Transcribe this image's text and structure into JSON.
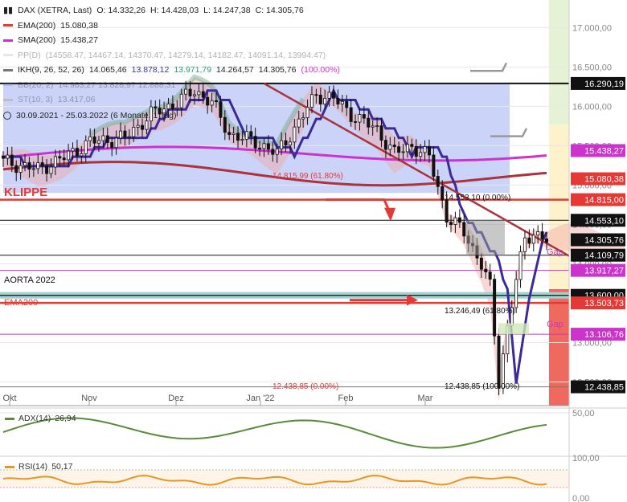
{
  "chart_data": {
    "type": "line",
    "instrument": "DAX (XETRA, Last)",
    "ohlc": {
      "o": "O: 14.332,26",
      "h": "H: 14.428,03",
      "l": "L: 14.247,38",
      "c": "C: 14.305,76"
    },
    "range_note": "30.09.2021 - 25.03.2022   (6 Monate, 1 Tag)",
    "indicators": [
      {
        "label": "EMA(200)",
        "value": "15.080,38",
        "color": "#e53935"
      },
      {
        "label": "SMA(200)",
        "value": "15.438,27",
        "color": "#cc33cc"
      },
      {
        "label": "PP(D)",
        "value": "(14558.47, 14467.14, 14370.47, 14279.14, 14182.47, 14091.14, 13994.47)",
        "color": "#bbbbbb",
        "faded": true
      },
      {
        "label": "IKH(9, 26, 52, 26)",
        "value": "14.065,46",
        "v2": "13.878,12",
        "v3": "13.971,79",
        "v4": "14.264,57",
        "v5": "14.305,76",
        "v6": "(100.00%)",
        "color": "#777777"
      },
      {
        "label": "BB(20, 2)",
        "value": "14.983,27  13.828,97  12.888,31",
        "color": "#8a8adc",
        "faded": true
      },
      {
        "label": "ST(10, 3)",
        "value": "13.417,06",
        "color": "#9c9c6c",
        "faded": true
      }
    ],
    "y_axis": {
      "ylim": [
        12200,
        17350
      ],
      "ticks": [
        17000,
        16500,
        16000,
        15500,
        15000,
        14500,
        14000,
        13500,
        13000,
        12500
      ],
      "tick_labels": [
        "17.000,00",
        "16.500,00",
        "16.000,00",
        "15.500,00",
        "15.000,00",
        "14.500,00",
        "14.000,00",
        "13.500,00",
        "13.000,00",
        "12.500,00"
      ]
    },
    "x_axis": {
      "labels": [
        "Okt",
        "Nov",
        "Dez",
        "Jan '22",
        "Feb",
        "Mar"
      ]
    },
    "price_tags": [
      {
        "value": 16290.19,
        "text": "16.290,19",
        "bg": "#111111",
        "fg": "#ffffff"
      },
      {
        "value": 15438.27,
        "text": "15.438,27",
        "bg": "#cc33cc",
        "fg": "#ffffff"
      },
      {
        "value": 15080.38,
        "text": "15.080,38",
        "bg": "#e53935",
        "fg": "#ffffff"
      },
      {
        "value": 14815.0,
        "text": "14.815,00",
        "bg": "#e53935",
        "fg": "#ffffff"
      },
      {
        "value": 14553.1,
        "text": "14.553,10",
        "bg": "#111111",
        "fg": "#ffffff"
      },
      {
        "value": 14305.76,
        "text": "14.305,76",
        "bg": "#111111",
        "fg": "#ffffff"
      },
      {
        "value": 14109.79,
        "text": "14.109,79",
        "bg": "#111111",
        "fg": "#ffffff"
      },
      {
        "value": 13917.27,
        "text": "13.917,27",
        "bg": "#cc33cc",
        "fg": "#ffffff"
      },
      {
        "value": 13600.0,
        "text": "13.600,00",
        "bg": "#111111",
        "fg": "#ffffff"
      },
      {
        "value": 13503.73,
        "text": "13.503,73",
        "bg": "#e53935",
        "fg": "#ffffff"
      },
      {
        "value": 13106.76,
        "text": "13.106,76",
        "bg": "#cc33cc",
        "fg": "#ffffff"
      },
      {
        "value": 12438.85,
        "text": "12.438,85",
        "bg": "#111111",
        "fg": "#ffffff"
      }
    ],
    "annotations": {
      "klippe": "KLIPPE",
      "aorta": "AORTA 2022",
      "ema200": "EMA200",
      "gap": "Gap",
      "fib1": "14.815,99 (61.80%)",
      "fib2": "14.553,10 (0.00%)",
      "fib3": "13.246,49 (61.80%)",
      "fib4": "12.438,85 (0.00%)",
      "fib5": "12.438,85 (100.00%)"
    },
    "adx": {
      "label": "ADX(14)",
      "value": "26,94",
      "ticks": [
        "50,00"
      ],
      "color": "#5a8a3a"
    },
    "rsi": {
      "label": "RSI(14)",
      "value": "50,17",
      "ticks": [
        "100,00",
        "0,00"
      ],
      "color": "#e8961e"
    }
  }
}
